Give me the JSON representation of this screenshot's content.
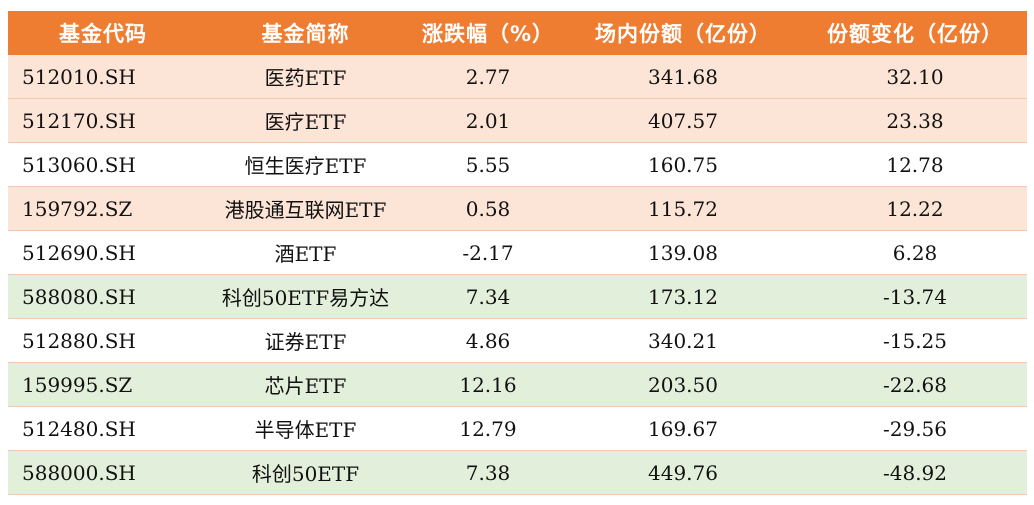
{
  "colors": {
    "header_bg": "#ee7d31",
    "row_orange": "#fce4d6",
    "row_green": "#e2efda",
    "row_plain": "#ffffff"
  },
  "headers": [
    "基金代码",
    "基金简称",
    "涨跌幅（%）",
    "场内份额（亿份）",
    "份额变化（亿份）"
  ],
  "rows": [
    {
      "code": "512010.SH",
      "name": "医药ETF",
      "change": "2.77",
      "shares": "341.68",
      "delta": "32.10",
      "highlight": "orange"
    },
    {
      "code": "512170.SH",
      "name": "医疗ETF",
      "change": "2.01",
      "shares": "407.57",
      "delta": "23.38",
      "highlight": "orange"
    },
    {
      "code": "513060.SH",
      "name": "恒生医疗ETF",
      "change": "5.55",
      "shares": "160.75",
      "delta": "12.78",
      "highlight": "plain"
    },
    {
      "code": "159792.SZ",
      "name": "港股通互联网ETF",
      "change": "0.58",
      "shares": "115.72",
      "delta": "12.22",
      "highlight": "orange"
    },
    {
      "code": "512690.SH",
      "name": "酒ETF",
      "change": "-2.17",
      "shares": "139.08",
      "delta": "6.28",
      "highlight": "plain"
    },
    {
      "code": "588080.SH",
      "name": "科创50ETF易方达",
      "change": "7.34",
      "shares": "173.12",
      "delta": "-13.74",
      "highlight": "green"
    },
    {
      "code": "512880.SH",
      "name": "证券ETF",
      "change": "4.86",
      "shares": "340.21",
      "delta": "-15.25",
      "highlight": "plain"
    },
    {
      "code": "159995.SZ",
      "name": "芯片ETF",
      "change": "12.16",
      "shares": "203.50",
      "delta": "-22.68",
      "highlight": "green"
    },
    {
      "code": "512480.SH",
      "name": "半导体ETF",
      "change": "12.79",
      "shares": "169.67",
      "delta": "-29.56",
      "highlight": "plain"
    },
    {
      "code": "588000.SH",
      "name": "科创50ETF",
      "change": "7.38",
      "shares": "449.76",
      "delta": "-48.92",
      "highlight": "green"
    }
  ]
}
